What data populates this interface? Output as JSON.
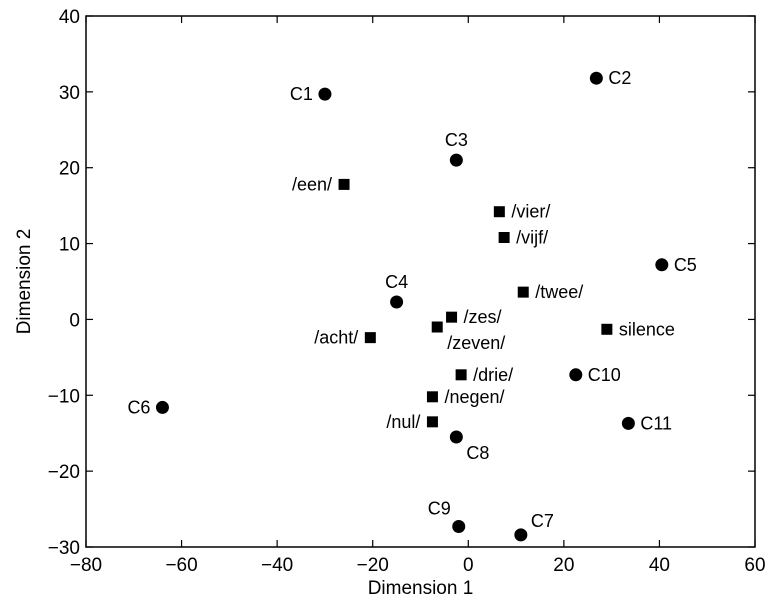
{
  "chart_data": {
    "type": "scatter",
    "title": "",
    "xlabel": "Dimension 1",
    "ylabel": "Dimension 2",
    "xlim": [
      -80,
      60
    ],
    "ylim": [
      -30,
      40
    ],
    "xticks": [
      -80,
      -60,
      -40,
      -20,
      0,
      20,
      40,
      60
    ],
    "yticks": [
      -30,
      -20,
      -10,
      0,
      10,
      20,
      30,
      40
    ],
    "xtick_labels": [
      "−80",
      "−60",
      "−40",
      "−20",
      "0",
      "20",
      "40",
      "60"
    ],
    "ytick_labels": [
      "−30",
      "−20",
      "−10",
      "0",
      "10",
      "20",
      "30",
      "40"
    ],
    "grid": false,
    "legend": "none",
    "marker_color": "#000000",
    "series": [
      {
        "marker": "circle",
        "points": [
          {
            "label": "C1",
            "x": -30.0,
            "y": 29.7,
            "label_side": "left"
          },
          {
            "label": "C2",
            "x": 26.8,
            "y": 31.8,
            "label_side": "right"
          },
          {
            "label": "C3",
            "x": -2.5,
            "y": 21.0,
            "label_side": "above"
          },
          {
            "label": "C4",
            "x": -15.0,
            "y": 2.3,
            "label_side": "above"
          },
          {
            "label": "C5",
            "x": 40.5,
            "y": 7.2,
            "label_side": "right"
          },
          {
            "label": "C6",
            "x": -64.0,
            "y": -11.6,
            "label_side": "left"
          },
          {
            "label": "C7",
            "x": 11.0,
            "y": -28.4,
            "label_side": "above-right"
          },
          {
            "label": "C8",
            "x": -2.5,
            "y": -15.5,
            "label_side": "below-right"
          },
          {
            "label": "C9",
            "x": -2.0,
            "y": -27.3,
            "label_side": "above-left"
          },
          {
            "label": "C10",
            "x": 22.5,
            "y": -7.3,
            "label_side": "right"
          },
          {
            "label": "C11",
            "x": 33.5,
            "y": -13.7,
            "label_side": "right"
          }
        ]
      },
      {
        "marker": "square",
        "points": [
          {
            "label": "/een/",
            "x": -26.0,
            "y": 17.8,
            "label_side": "left"
          },
          {
            "label": "/vier/",
            "x": 6.5,
            "y": 14.2,
            "label_side": "right"
          },
          {
            "label": "/vijf/",
            "x": 7.5,
            "y": 10.8,
            "label_side": "right"
          },
          {
            "label": "/twee/",
            "x": 11.5,
            "y": 3.6,
            "label_side": "right"
          },
          {
            "label": "/zes/",
            "x": -3.5,
            "y": 0.3,
            "label_side": "right"
          },
          {
            "label": "/zeven/",
            "x": -6.5,
            "y": -1.0,
            "label_side": "below-right"
          },
          {
            "label": "/acht/",
            "x": -20.5,
            "y": -2.4,
            "label_side": "left"
          },
          {
            "label": "silence",
            "x": 29.0,
            "y": -1.3,
            "label_side": "right"
          },
          {
            "label": "/drie/",
            "x": -1.5,
            "y": -7.3,
            "label_side": "right"
          },
          {
            "label": "/negen/",
            "x": -7.5,
            "y": -10.2,
            "label_side": "right"
          },
          {
            "label": "/nul/",
            "x": -7.5,
            "y": -13.5,
            "label_side": "left"
          }
        ]
      }
    ]
  }
}
